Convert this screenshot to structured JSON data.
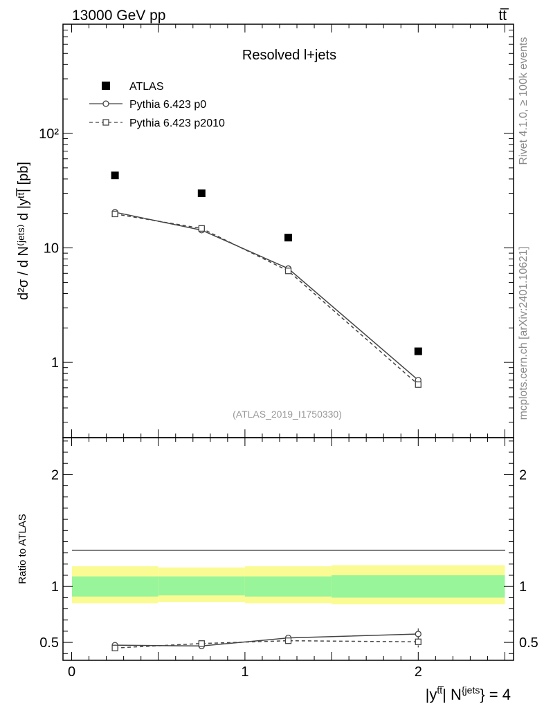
{
  "header": {
    "left": "13000 GeV pp",
    "right": "tt̅"
  },
  "chart_data": [
    {
      "type": "scatter",
      "title": "Resolved l+jets",
      "ylabel": "d²σ / d N⁽ʲᵉᵗˢ⁾ d |yᵗᵗ̅| [pb]",
      "yscale": "log",
      "ylim": [
        0.22,
        900
      ],
      "xlim": [
        -0.05,
        2.55
      ],
      "ytick_labels": {
        "100": "10²",
        "10": "10",
        "1": "1"
      },
      "series": [
        {
          "name": "ATLAS",
          "marker": "filled-square",
          "x": [
            0.25,
            0.75,
            1.25,
            2.0
          ],
          "y": [
            43,
            30,
            12.3,
            1.25
          ]
        },
        {
          "name": "Pythia 6.423 p0",
          "marker": "open-circle",
          "line": "solid",
          "x": [
            0.25,
            0.75,
            1.25,
            2.0
          ],
          "y": [
            20.5,
            14.3,
            6.6,
            0.7
          ]
        },
        {
          "name": "Pythia 6.423 p2010",
          "marker": "open-square",
          "line": "dashed",
          "x": [
            0.25,
            0.75,
            1.25,
            2.0
          ],
          "y": [
            19.8,
            14.8,
            6.3,
            0.64
          ]
        }
      ],
      "annotation": "(ATLAS_2019_I1750330)"
    },
    {
      "type": "scatter",
      "ylabel": "Ratio to ATLAS",
      "xlabel_main": "|y",
      "xlabel_sup1": "tt̅",
      "xlabel_mid": "| N",
      "xlabel_sup2": "{jets",
      "xlabel_end": "} = 4",
      "ylim": [
        0.34,
        2.33
      ],
      "xlim": [
        -0.05,
        2.55
      ],
      "xtick_labels": [
        "0",
        "1",
        "2"
      ],
      "xticks": [
        0,
        1,
        2
      ],
      "ytick_labels": [
        "0.5",
        "1",
        "2"
      ],
      "yticks": [
        0.5,
        1,
        2
      ],
      "bands": [
        {
          "x": [
            0,
            0.5
          ],
          "green": [
            0.91,
            1.09
          ],
          "yellow": [
            0.85,
            1.18
          ]
        },
        {
          "x": [
            0.5,
            1.0
          ],
          "green": [
            0.92,
            1.09
          ],
          "yellow": [
            0.86,
            1.17
          ]
        },
        {
          "x": [
            1.0,
            1.5
          ],
          "green": [
            0.91,
            1.09
          ],
          "yellow": [
            0.85,
            1.18
          ]
        },
        {
          "x": [
            1.5,
            2.5
          ],
          "green": [
            0.9,
            1.1
          ],
          "yellow": [
            0.84,
            1.19
          ]
        }
      ],
      "series": [
        {
          "name": "Pythia 6.423 p0",
          "marker": "open-circle",
          "line": "solid",
          "x": [
            0.25,
            0.75,
            1.25,
            2.0
          ],
          "y": [
            0.475,
            0.468,
            0.54,
            0.575
          ],
          "err": [
            0.008,
            0.008,
            0.02,
            0.05
          ]
        },
        {
          "name": "Pythia 6.423 p2010",
          "marker": "open-square",
          "line": "dashed",
          "x": [
            0.25,
            0.75,
            1.25,
            2.0
          ],
          "y": [
            0.45,
            0.49,
            0.515,
            0.505
          ],
          "err": [
            0.008,
            0.008,
            0.02,
            0.05
          ]
        }
      ]
    }
  ],
  "sidebar": {
    "rivet": "Rivet 4.1.0, ≥ 100k events",
    "mcplots": "mcplots.cern.ch [arXiv:2401.10621]"
  }
}
